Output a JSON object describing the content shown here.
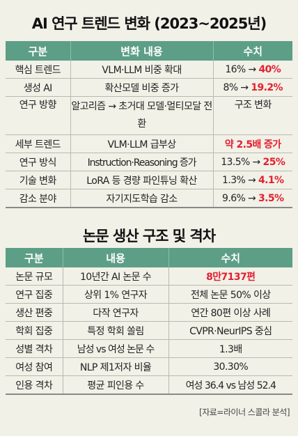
{
  "title_top": "AI 연구 트렌드 변화 (2023~2025년)",
  "table1": {
    "headers": [
      "구분",
      "변화 내용",
      "수치"
    ],
    "rows": [
      {
        "category": "핵심 트렌드",
        "content": "VLM·LLM 비중 확대",
        "value_plain": "16% → ",
        "value_red": "40%"
      },
      {
        "category": "생성 AI",
        "content": "확산모델 비중 증가",
        "value_plain": "8% → ",
        "value_red": "19.2%"
      },
      {
        "category": "연구 방향",
        "content": "알고리즘 → 초거대 모델·멀티모달 전환",
        "value_plain": "구조 변화",
        "value_red": ""
      },
      {
        "category": "세부 트렌드",
        "content": "VLM·LLM 급부상",
        "value_plain": "",
        "value_red": "약 2.5배 증가"
      },
      {
        "category": "연구 방식",
        "content": "Instruction·Reasoning 증가",
        "value_plain": "13.5% → ",
        "value_red": "25%"
      },
      {
        "category": "기술 변화",
        "content": "LoRA 등 경량 파인튜닝 확산",
        "value_plain": "1.3% → ",
        "value_red": "4.1%"
      },
      {
        "category": "감소 분야",
        "content": "자기지도학습 감소",
        "value_plain": "9.6% → ",
        "value_red": "3.5%"
      }
    ]
  },
  "title_bottom": "논문 생산 구조 및 격차",
  "table2": {
    "headers": [
      "구분",
      "내용",
      "수치"
    ],
    "rows": [
      {
        "category": "논문 규모",
        "content": "10년간 AI 논문 수",
        "value_plain": "",
        "value_red": "8만7137편"
      },
      {
        "category": "연구 집중",
        "content": "상위 1% 연구자",
        "value_plain": "전체 논문 50% 이상",
        "value_red": ""
      },
      {
        "category": "생산 편중",
        "content": "다작 연구자",
        "value_plain": "연간 80편 이상 사례",
        "value_red": ""
      },
      {
        "category": "학회 집중",
        "content": "특정 학회 쏠림",
        "value_plain": "CVPR·NeurIPS 중심",
        "value_red": ""
      },
      {
        "category": "성별 격차",
        "content": "남성 vs 여성 논문 수",
        "value_plain": "1.3배",
        "value_red": ""
      },
      {
        "category": "여성 참여",
        "content": "NLP 제1저자 비율",
        "value_plain": "30.30%",
        "value_red": ""
      },
      {
        "category": "인용 격차",
        "content": "평균 피인용 수",
        "value_plain": "여성 36.4 vs 남성 52.4",
        "value_red": ""
      }
    ]
  },
  "source": "[자료=라이너 스콜라 분석]",
  "colors": {
    "header_bg": "#5d9e87",
    "highlight": "#e4202f",
    "background": "#f1f1e8"
  }
}
